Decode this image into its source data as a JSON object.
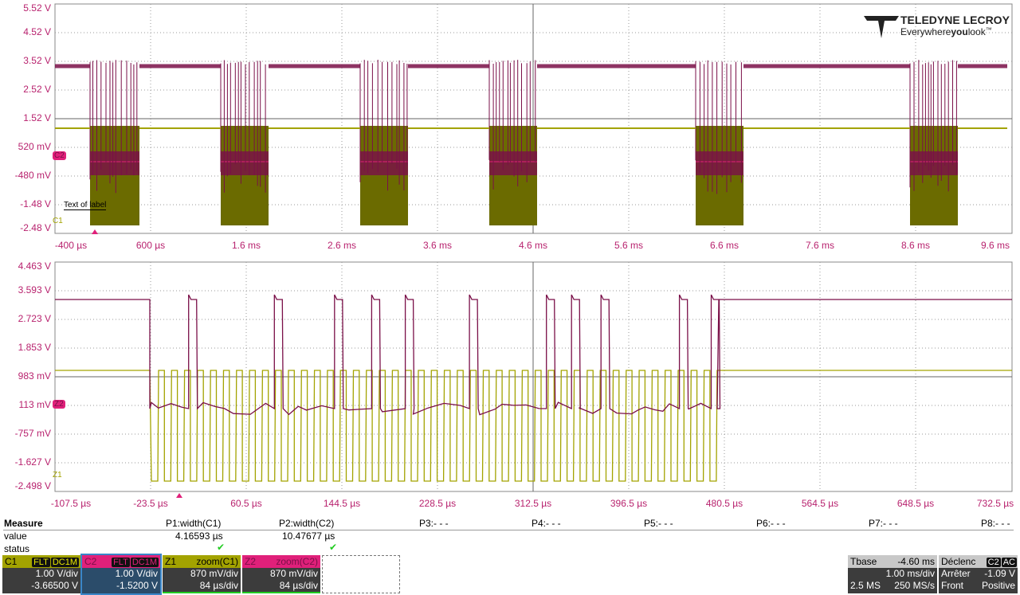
{
  "logo": {
    "brand": "TELEDYNE LECROY",
    "tagline_a": "Everywhere",
    "tagline_b": "you",
    "tagline_c": "look",
    "tm": "™"
  },
  "top_grid": {
    "y_labels": [
      "5.52 V",
      "4.52 V",
      "3.52 V",
      "2.52 V",
      "1.52 V",
      "520 mV",
      "-480 mV",
      "-1.48 V",
      "-2.48 V"
    ],
    "x_labels": [
      "-400 µs",
      "600 µs",
      "1.6 ms",
      "2.6 ms",
      "3.6 ms",
      "4.6 ms",
      "5.6 ms",
      "6.6 ms",
      "7.6 ms",
      "8.6 ms",
      "9.6 ms"
    ],
    "c2_marker": "C2",
    "c1_marker": "C1",
    "label_text": "Text of label"
  },
  "bottom_grid": {
    "y_labels": [
      "4.463 V",
      "3.593 V",
      "2.723 V",
      "1.853 V",
      "983 mV",
      "113 mV",
      "-757 mV",
      "-1.627 V",
      "-2.498 V"
    ],
    "x_labels": [
      "-107.5 µs",
      "-23.5 µs",
      "60.5 µs",
      "144.5 µs",
      "228.5 µs",
      "312.5 µs",
      "396.5 µs",
      "480.5 µs",
      "564.5 µs",
      "648.5 µs",
      "732.5 µs"
    ],
    "z2_marker": "Z2",
    "z1_marker": "Z1"
  },
  "colors": {
    "c1": "#a3a300",
    "c1_fill": "#6b6b00",
    "c2": "#7a0f48",
    "c2_label": "#e0207a",
    "axis_text": "#b8226e"
  },
  "measure": {
    "title": "Measure",
    "row_value": "value",
    "row_status": "status",
    "params": [
      {
        "name": "P1:width(C1)",
        "value": "4.16593 µs",
        "status": "ok"
      },
      {
        "name": "P2:width(C2)",
        "value": "10.47677 µs",
        "status": "ok"
      },
      {
        "name": "P3:- - -"
      },
      {
        "name": "P4:- - -"
      },
      {
        "name": "P5:- - -"
      },
      {
        "name": "P6:- - -"
      },
      {
        "name": "P7:- - -"
      },
      {
        "name": "P8:- - -"
      }
    ]
  },
  "channels": [
    {
      "id": "C1",
      "tag1": "FLT",
      "tag2": "DC1M",
      "line1": "1.00 V/div",
      "line2": "-3.66500 V"
    },
    {
      "id": "C2",
      "tag1": "FLT",
      "tag2": "DC1M",
      "line1": "1.00 V/div",
      "line2": "-1.5200 V"
    },
    {
      "id": "Z1",
      "src": "zoom(C1)",
      "line1": "870 mV/div",
      "line2": "84 µs/div"
    },
    {
      "id": "Z2",
      "src": "zoom(C2)",
      "line1": "870 mV/div",
      "line2": "84 µs/div"
    }
  ],
  "timebase": {
    "label": "Tbase",
    "delay": "-4.60 ms",
    "div": "1.00 ms/div",
    "samples": "2.5 MS",
    "rate": "250 MS/s"
  },
  "trigger": {
    "label": "Déclenc",
    "src": "C2",
    "coupling": "AC",
    "mode": "Arrêter",
    "level": "-1.09 V",
    "type": "Front",
    "slope": "Positive"
  }
}
